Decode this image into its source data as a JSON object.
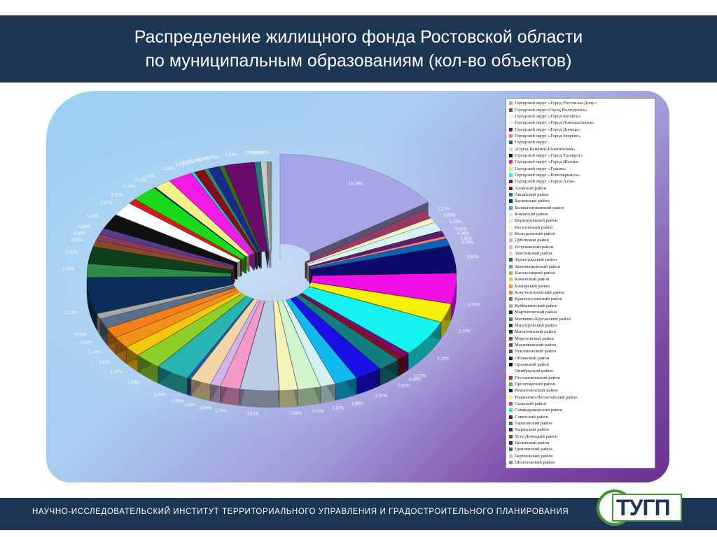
{
  "header": {
    "title_line1": "Распределение жилищного фонда Ростовской области",
    "title_line2": "по муниципальным образованиям (кол-во объектов)"
  },
  "footer": {
    "text": "НАУЧНО-ИССЛЕДОВАТЕЛЬСКИЙ ИНСТИТУТ ТЕРРИТОРИАЛЬНОГО УПРАВЛЕНИЯ И ГРАДОСТРОИТЕЛЬНОГО ПЛАНИРОВАНИЯ",
    "logo_text": "ТУГП"
  },
  "chart_data": {
    "type": "pie",
    "title": "Распределение жилищного фонда Ростовской области по муниципальным образованиям (кол-во объектов)",
    "legend_position": "right",
    "unit": "%",
    "slices": [
      {
        "name": "Городской округ «Город Ростов-на-Дону»",
        "value": 15.19,
        "label": "15,19%",
        "color": "#a7a5e8"
      },
      {
        "name": "Городской округ«Город Волгодонск»",
        "value": 1.21,
        "label": "1,21%",
        "color": "#9a3a64"
      },
      {
        "name": "Городской округ «Город Батайск»",
        "value": 0.69,
        "label": "0,69%",
        "color": "#f3f1c8"
      },
      {
        "name": "Городской округ «Город Новошахтинск»",
        "value": 1.28,
        "label": "1,28%",
        "color": "#d7f2f4"
      },
      {
        "name": "Городской округ «Город Донецк»",
        "value": 0.8,
        "label": "0,80%",
        "color": "#5a1f66"
      },
      {
        "name": "Городской округ «Город Зверево»",
        "value": 0.36,
        "label": "0,36%",
        "color": "#f07f88"
      },
      {
        "name": "Городской округ",
        "value": 1.02,
        "label": "1,02%",
        "color": "#0a63b5"
      },
      {
        "name": "«Город Каменск-Шахтинский»",
        "value": 0.0,
        "label": "0,00%",
        "color": "#cfd3ee"
      },
      {
        "name": "Городской округ «Город Таганрог»",
        "value": 3.82,
        "label": "3,82%",
        "color": "#0a0b6a"
      },
      {
        "name": "Городской округ «Город Шахты»",
        "value": 4.29,
        "label": "4,29%",
        "color": "#f010e6"
      },
      {
        "name": "Городской округ «Гуково»",
        "value": 2.7,
        "label": "2,70%",
        "color": "#f7f00a"
      },
      {
        "name": "Городской округ «Новочеркасск»",
        "value": 5.15,
        "label": "5,15%",
        "color": "#14f2f2"
      },
      {
        "name": "Городской округ «Город Азов»",
        "value": 0.72,
        "label": "0,72%",
        "color": "#7a0b6a"
      },
      {
        "name": "Азовский район",
        "value": 0.49,
        "label": "0,49%",
        "color": "#8f0f14"
      },
      {
        "name": "Аксайский район",
        "value": 2.01,
        "label": "2,01%",
        "color": "#127c80"
      },
      {
        "name": "Багаевский район",
        "value": 2.37,
        "label": "2,37%",
        "color": "#1a0fe6"
      },
      {
        "name": "Белокалитвинский район",
        "value": 1.98,
        "label": "1,98%",
        "color": "#12b8ef"
      },
      {
        "name": "Боковский район",
        "value": 1.32,
        "label": "1,32%",
        "color": "#d3f2f4"
      },
      {
        "name": "Верхнедонской район",
        "value": 2.01,
        "label": "2,01%",
        "color": "#d2f5cd"
      },
      {
        "name": "Веселовский район",
        "value": 1.58,
        "label": "1,58%",
        "color": "#f6f3b8"
      },
      {
        "name": "Волгодонский район",
        "value": 3.41,
        "label": "3,41%",
        "color": "#bccce6"
      },
      {
        "name": "Дубовский район",
        "value": 1.7,
        "label": "1,70%",
        "color": "#f39ac8"
      },
      {
        "name": "Егорлыкский район",
        "value": 0.89,
        "label": "0,89%",
        "color": "#d2b3ea"
      },
      {
        "name": "Заветинский район",
        "value": 1.82,
        "label": "1,82%",
        "color": "#f3d4a6"
      },
      {
        "name": "Зерноградский район",
        "value": 0.3,
        "label": "0,30%",
        "color": "#1d5ea7"
      },
      {
        "name": "Зимовниковский район",
        "value": 3.0,
        "label": "3,00%",
        "color": "#2ab3b3"
      },
      {
        "name": "Кагальницкий район",
        "value": 2.34,
        "label": "2,34%",
        "color": "#8fcf2a"
      },
      {
        "name": "Каменский район",
        "value": 1.47,
        "label": "1,47%",
        "color": "#f3c612"
      },
      {
        "name": "Кашарский район",
        "value": 1.63,
        "label": "1,63%",
        "color": "#f3921a"
      },
      {
        "name": "Константиновский район",
        "value": 1.47,
        "label": "1,47%",
        "color": "#f3801a"
      },
      {
        "name": "Красносулинский район",
        "value": 1.42,
        "label": "1,42%",
        "color": "#5a6f8a"
      },
      {
        "name": "Куйбышевский район",
        "value": 0.75,
        "label": "0,75%",
        "color": "#a7a7a7"
      },
      {
        "name": "Мартыновский район",
        "value": 5.12,
        "label": "5,12%",
        "color": "#0b2f5a"
      },
      {
        "name": "Матвеево-Курганский район",
        "value": 1.9,
        "label": "1,90%",
        "color": "#2e8a4a"
      },
      {
        "name": "Миллеровский район",
        "value": 0.0,
        "label": "",
        "color": "#3a3a3a"
      },
      {
        "name": "Милютинский район",
        "value": 2.41,
        "label": "2,41%",
        "color": "#0d3f1d"
      },
      {
        "name": "Морозовский район",
        "value": 0.92,
        "label": "0,92%",
        "color": "#8a4a2a"
      },
      {
        "name": "Мясниковский район",
        "value": 0.89,
        "label": "0,89%",
        "color": "#8a3a5a"
      },
      {
        "name": "Неклиновский район",
        "value": 0.88,
        "label": "0,88%",
        "color": "#5a3a8a"
      },
      {
        "name": "Обливский район",
        "value": 0.0,
        "label": "",
        "color": "#1a1a3a"
      },
      {
        "name": "Орловский район",
        "value": 2.12,
        "label": "2,12%",
        "color": "#111111"
      },
      {
        "name": "Октябрьский район",
        "value": 1.97,
        "label": "1,97%",
        "color": "#ffffff"
      },
      {
        "name": "Песчанокопский район",
        "value": 0.72,
        "label": "0,72%",
        "color": "#d81a1a"
      },
      {
        "name": "Пролетарский район",
        "value": 2.29,
        "label": "2,29%",
        "color": "#1ad81a"
      },
      {
        "name": "Ремонтненский район",
        "value": 0.13,
        "label": "0,13%",
        "color": "#1a1a8a"
      },
      {
        "name": "Родионово-Несветайский район",
        "value": 1.51,
        "label": "1,51%",
        "color": "#f3f08a"
      },
      {
        "name": "Сальский район",
        "value": 2.18,
        "label": "2,18%",
        "color": "#f61ae6"
      },
      {
        "name": "Семикаракорский район",
        "value": 0.23,
        "label": "0,23%",
        "color": "#14e6f0"
      },
      {
        "name": "Советский район",
        "value": 0.92,
        "label": "0,92%",
        "color": "#8a0a1a"
      },
      {
        "name": "Тарасовский район",
        "value": 0.38,
        "label": "0,38%",
        "color": "#2a8a6a"
      },
      {
        "name": "Тацинский район",
        "value": 0.98,
        "label": "0,98%",
        "color": "#1a2a8a"
      },
      {
        "name": "Усть-Донецкий район",
        "value": 0.45,
        "label": "0,45%",
        "color": "#3a6a1a"
      },
      {
        "name": "Целинский район",
        "value": 2.63,
        "label": "2,63%",
        "color": "#6a0a6a"
      },
      {
        "name": "Цимлянский район",
        "value": 0.54,
        "label": "0,54%",
        "color": "#2a7a7a"
      },
      {
        "name": "Чертковский район",
        "value": 0.52,
        "label": "0,52%",
        "color": "#c8c8c8"
      },
      {
        "name": "Шолоховский район",
        "value": 0.42,
        "label": "0,42%",
        "color": "#8a8a8a"
      }
    ]
  }
}
